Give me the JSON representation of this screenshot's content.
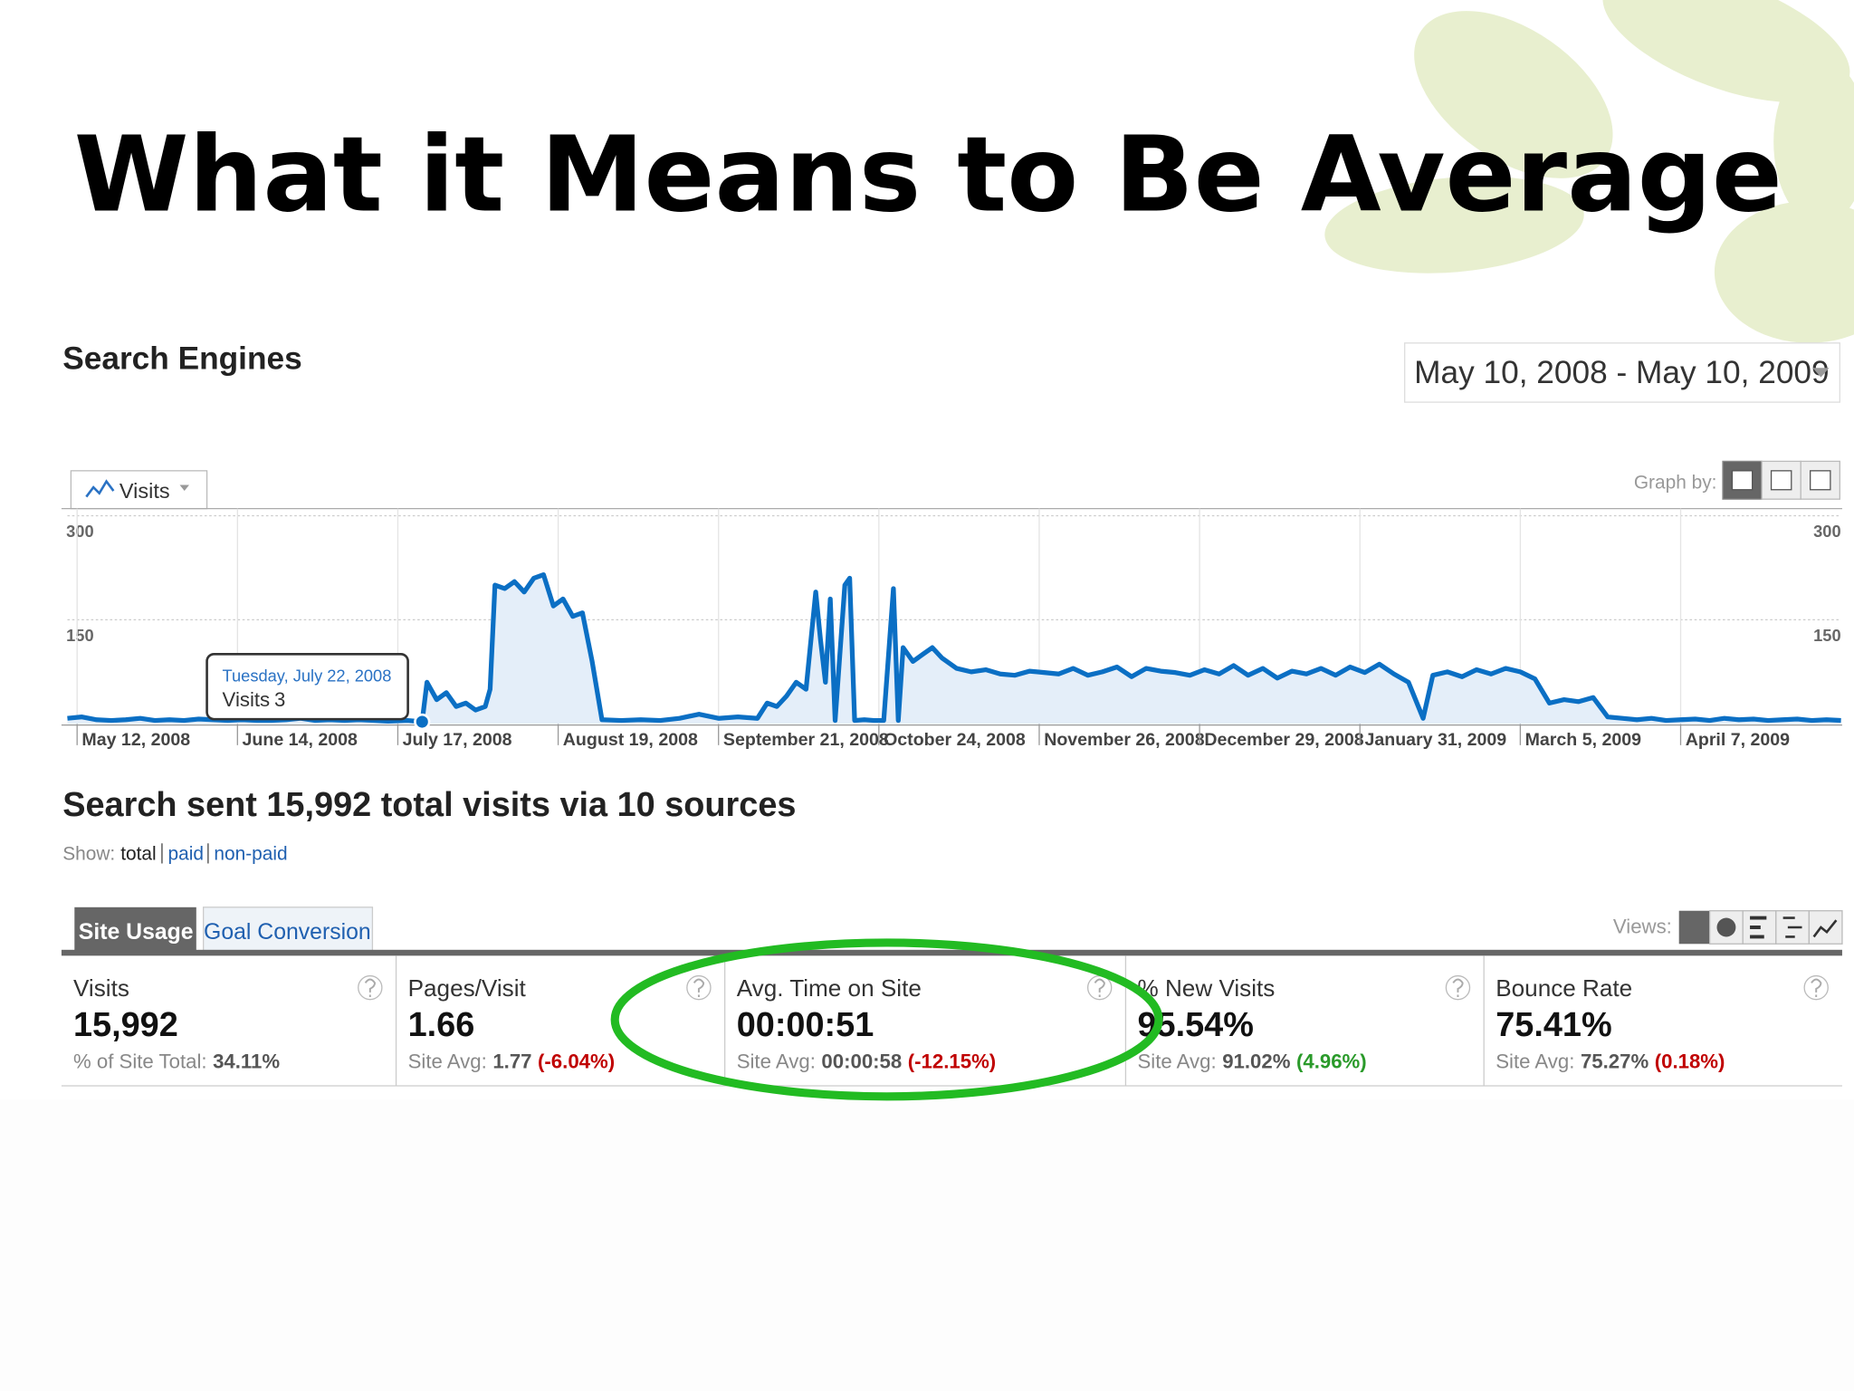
{
  "slide": {
    "title": "What it Means to Be Average"
  },
  "header": {
    "title": "Search Engines",
    "date_range": "May 10, 2008 - May 10, 2009"
  },
  "graph_controls": {
    "graph_by": "Graph by:"
  },
  "chart_data": {
    "type": "line",
    "x": [
      0,
      3,
      6,
      9,
      12,
      15,
      18,
      21,
      24,
      27,
      30,
      33,
      36,
      39,
      42,
      45,
      48,
      51,
      54,
      57,
      60,
      63,
      66,
      70,
      73,
      74,
      76,
      78,
      80,
      82,
      84,
      86,
      87,
      88,
      90,
      92,
      94,
      96,
      98,
      100,
      102,
      104,
      106,
      108,
      110,
      114,
      118,
      122,
      126,
      130,
      134,
      138,
      142,
      144,
      146,
      148,
      150,
      152,
      154,
      155,
      156,
      157,
      158,
      160,
      161,
      162,
      164,
      166,
      168,
      170,
      171,
      172,
      174,
      176,
      178,
      180,
      183,
      186,
      189,
      192,
      195,
      198,
      201,
      204,
      207,
      210,
      213,
      216,
      219,
      222,
      225,
      228,
      231,
      234,
      237,
      240,
      243,
      246,
      249,
      252,
      255,
      258,
      261,
      264,
      267,
      270,
      273,
      276,
      279,
      281,
      284,
      287,
      290,
      293,
      296,
      299,
      302,
      305,
      308,
      311,
      314,
      317,
      320,
      323,
      326,
      329,
      332,
      335,
      338,
      341,
      344,
      347,
      350,
      353,
      356,
      359,
      362,
      365
    ],
    "series": [
      {
        "name": "Visits",
        "color": "#0b6fc4",
        "values": [
          8,
          10,
          6,
          5,
          6,
          8,
          5,
          6,
          5,
          7,
          6,
          5,
          6,
          5,
          5,
          6,
          8,
          5,
          6,
          5,
          6,
          5,
          4,
          5,
          3,
          60,
          35,
          45,
          25,
          30,
          20,
          25,
          50,
          200,
          195,
          205,
          190,
          210,
          215,
          170,
          180,
          155,
          160,
          90,
          6,
          5,
          6,
          5,
          8,
          14,
          8,
          10,
          8,
          30,
          25,
          40,
          60,
          50,
          190,
          120,
          60,
          180,
          5,
          200,
          210,
          5,
          6,
          5,
          5,
          195,
          5,
          110,
          90,
          100,
          110,
          95,
          80,
          75,
          78,
          72,
          70,
          76,
          74,
          72,
          80,
          70,
          75,
          82,
          68,
          80,
          76,
          74,
          70,
          78,
          72,
          84,
          70,
          80,
          66,
          76,
          72,
          80,
          70,
          82,
          74,
          86,
          72,
          60,
          8,
          70,
          75,
          68,
          78,
          72,
          80,
          75,
          65,
          30,
          35,
          32,
          38,
          10,
          8,
          6,
          8,
          5,
          6,
          7,
          5,
          8,
          6,
          7,
          5,
          6,
          7,
          5,
          6,
          5
        ]
      }
    ],
    "xlim": [
      0,
      365
    ],
    "ylim": [
      0,
      300
    ],
    "xticks": [
      {
        "value": 2,
        "label": "May 12, 2008"
      },
      {
        "value": 35,
        "label": "June 14, 2008"
      },
      {
        "value": 68,
        "label": "July 17, 2008"
      },
      {
        "value": 101,
        "label": "August 19, 2008"
      },
      {
        "value": 134,
        "label": "September 21, 2008"
      },
      {
        "value": 167,
        "label": "October 24, 2008"
      },
      {
        "value": 200,
        "label": "November 26, 2008"
      },
      {
        "value": 233,
        "label": "December 29, 2008"
      },
      {
        "value": 266,
        "label": "January 31, 2009"
      },
      {
        "value": 299,
        "label": "March 5, 2009"
      },
      {
        "value": 332,
        "label": "April 7, 2009"
      }
    ],
    "yticks": [
      150,
      300
    ],
    "grid": true,
    "area_color": "#e4eef9",
    "tooltip": {
      "title": "Tuesday, July 22, 2008",
      "label": "Visits",
      "x": 73,
      "value": 3
    }
  },
  "summary": {
    "title": "Search sent 15,992 total visits via 10 sources",
    "show_label": "Show:",
    "options": [
      "total",
      "paid",
      "non-paid"
    ]
  },
  "tabs": [
    "Site Usage",
    "Goal Conversion"
  ],
  "views_label": "Views:",
  "metrics": [
    {
      "label": "Visits",
      "value": "15,992",
      "sub_label": "% of Site Total:",
      "sub_value": "34.11%"
    },
    {
      "label": "Pages/Visit",
      "value": "1.66",
      "sub_label": "Site Avg:",
      "sub_value": "1.77",
      "change": "(-6.04%)",
      "change_color": "#c00000"
    },
    {
      "label": "Avg. Time on Site",
      "value": "00:00:51",
      "sub_label": "Site Avg:",
      "sub_value": "00:00:58",
      "change": "(-12.15%)",
      "change_color": "#c00000"
    },
    {
      "label": "% New Visits",
      "value": "95.54%",
      "sub_label": "Site Avg:",
      "sub_value": "91.02%",
      "change": "(4.96%)",
      "change_color": "#2a9a2a"
    },
    {
      "label": "Bounce Rate",
      "value": "75.41%",
      "sub_label": "Site Avg:",
      "sub_value": "75.27%",
      "change": "(0.18%)",
      "change_color": "#c00000"
    }
  ]
}
